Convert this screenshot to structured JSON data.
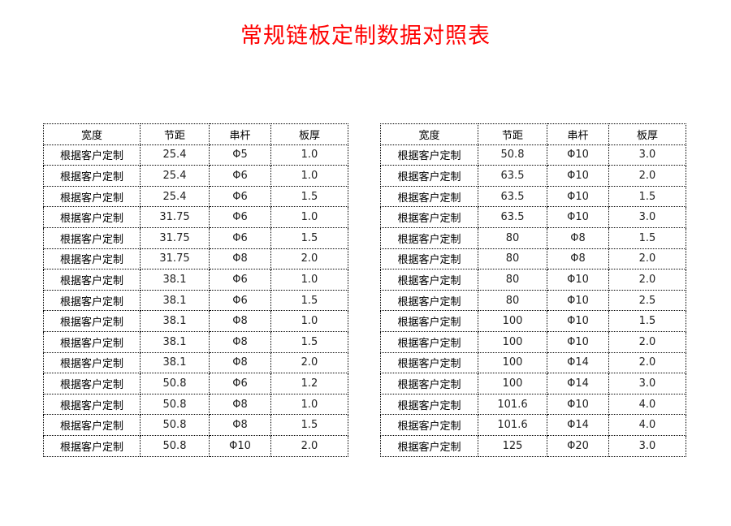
{
  "title": "常规链板定制数据对照表",
  "headers": [
    "宽度",
    "节距",
    "串杆",
    "板厚"
  ],
  "tables": [
    {
      "rows": [
        [
          "根据客户定制",
          "25.4",
          "Φ5",
          "1.0"
        ],
        [
          "根据客户定制",
          "25.4",
          "Φ6",
          "1.0"
        ],
        [
          "根据客户定制",
          "25.4",
          "Φ6",
          "1.5"
        ],
        [
          "根据客户定制",
          "31.75",
          "Φ6",
          "1.0"
        ],
        [
          "根据客户定制",
          "31.75",
          "Φ6",
          "1.5"
        ],
        [
          "根据客户定制",
          "31.75",
          "Φ8",
          "2.0"
        ],
        [
          "根据客户定制",
          "38.1",
          "Φ6",
          "1.0"
        ],
        [
          "根据客户定制",
          "38.1",
          "Φ6",
          "1.5"
        ],
        [
          "根据客户定制",
          "38.1",
          "Φ8",
          "1.0"
        ],
        [
          "根据客户定制",
          "38.1",
          "Φ8",
          "1.5"
        ],
        [
          "根据客户定制",
          "38.1",
          "Φ8",
          "2.0"
        ],
        [
          "根据客户定制",
          "50.8",
          "Φ6",
          "1.2"
        ],
        [
          "根据客户定制",
          "50.8",
          "Φ8",
          "1.0"
        ],
        [
          "根据客户定制",
          "50.8",
          "Φ8",
          "1.5"
        ],
        [
          "根据客户定制",
          "50.8",
          "Φ10",
          "2.0"
        ]
      ]
    },
    {
      "rows": [
        [
          "根据客户定制",
          "50.8",
          "Φ10",
          "3.0"
        ],
        [
          "根据客户定制",
          "63.5",
          "Φ10",
          "2.0"
        ],
        [
          "根据客户定制",
          "63.5",
          "Φ10",
          "1.5"
        ],
        [
          "根据客户定制",
          "63.5",
          "Φ10",
          "3.0"
        ],
        [
          "根据客户定制",
          "80",
          "Φ8",
          "1.5"
        ],
        [
          "根据客户定制",
          "80",
          "Φ8",
          "2.0"
        ],
        [
          "根据客户定制",
          "80",
          "Φ10",
          "2.0"
        ],
        [
          "根据客户定制",
          "80",
          "Φ10",
          "2.5"
        ],
        [
          "根据客户定制",
          "100",
          "Φ10",
          "1.5"
        ],
        [
          "根据客户定制",
          "100",
          "Φ10",
          "2.0"
        ],
        [
          "根据客户定制",
          "100",
          "Φ14",
          "2.0"
        ],
        [
          "根据客户定制",
          "100",
          "Φ14",
          "3.0"
        ],
        [
          "根据客户定制",
          "101.6",
          "Φ10",
          "4.0"
        ],
        [
          "根据客户定制",
          "101.6",
          "Φ14",
          "4.0"
        ],
        [
          "根据客户定制",
          "125",
          "Φ20",
          "3.0"
        ]
      ]
    }
  ]
}
